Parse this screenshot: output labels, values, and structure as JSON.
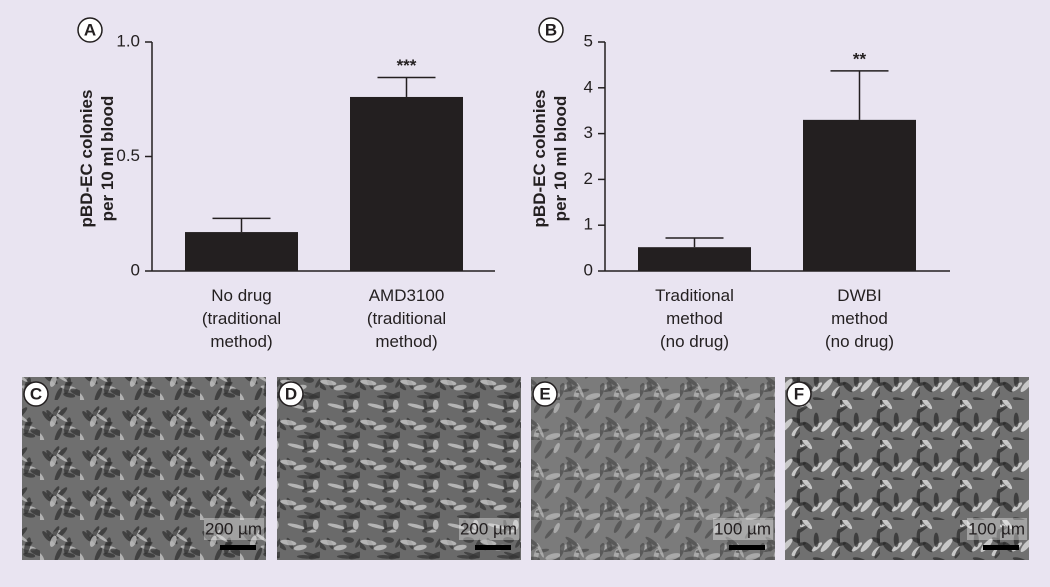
{
  "chart_data": [
    {
      "type": "bar",
      "panel": "A",
      "ylabel": "pBD-EC colonies\nper 10 ml blood",
      "categories": [
        "No drug\n(traditional\nmethod)",
        "AMD3100\n(traditional\nmethod)"
      ],
      "values": [
        0.17,
        0.76
      ],
      "errors": [
        0.06,
        0.085
      ],
      "color": "#231f20",
      "annotation": "***",
      "ylim": [
        0,
        1
      ],
      "yticks": [
        0,
        0.5,
        {
          "value": 1,
          "label": "1.0"
        }
      ]
    },
    {
      "type": "bar",
      "panel": "B",
      "ylabel": "pBD-EC colonies\nper 10 ml blood",
      "categories": [
        "Traditional\nmethod\n(no drug)",
        "DWBI\nmethod\n(no drug)"
      ],
      "values": [
        0.52,
        3.3
      ],
      "errors": [
        0.2,
        1.07
      ],
      "color": "#231f20",
      "annotation": "**",
      "ylim": [
        0,
        5
      ],
      "yticks": [
        0,
        1,
        2,
        3,
        4,
        5
      ]
    }
  ],
  "images": [
    {
      "label": "C",
      "scale": "200 µm"
    },
    {
      "label": "D",
      "scale": "200 µm"
    },
    {
      "label": "E",
      "scale": "100 µm"
    },
    {
      "label": "F",
      "scale": "100 µm"
    }
  ]
}
